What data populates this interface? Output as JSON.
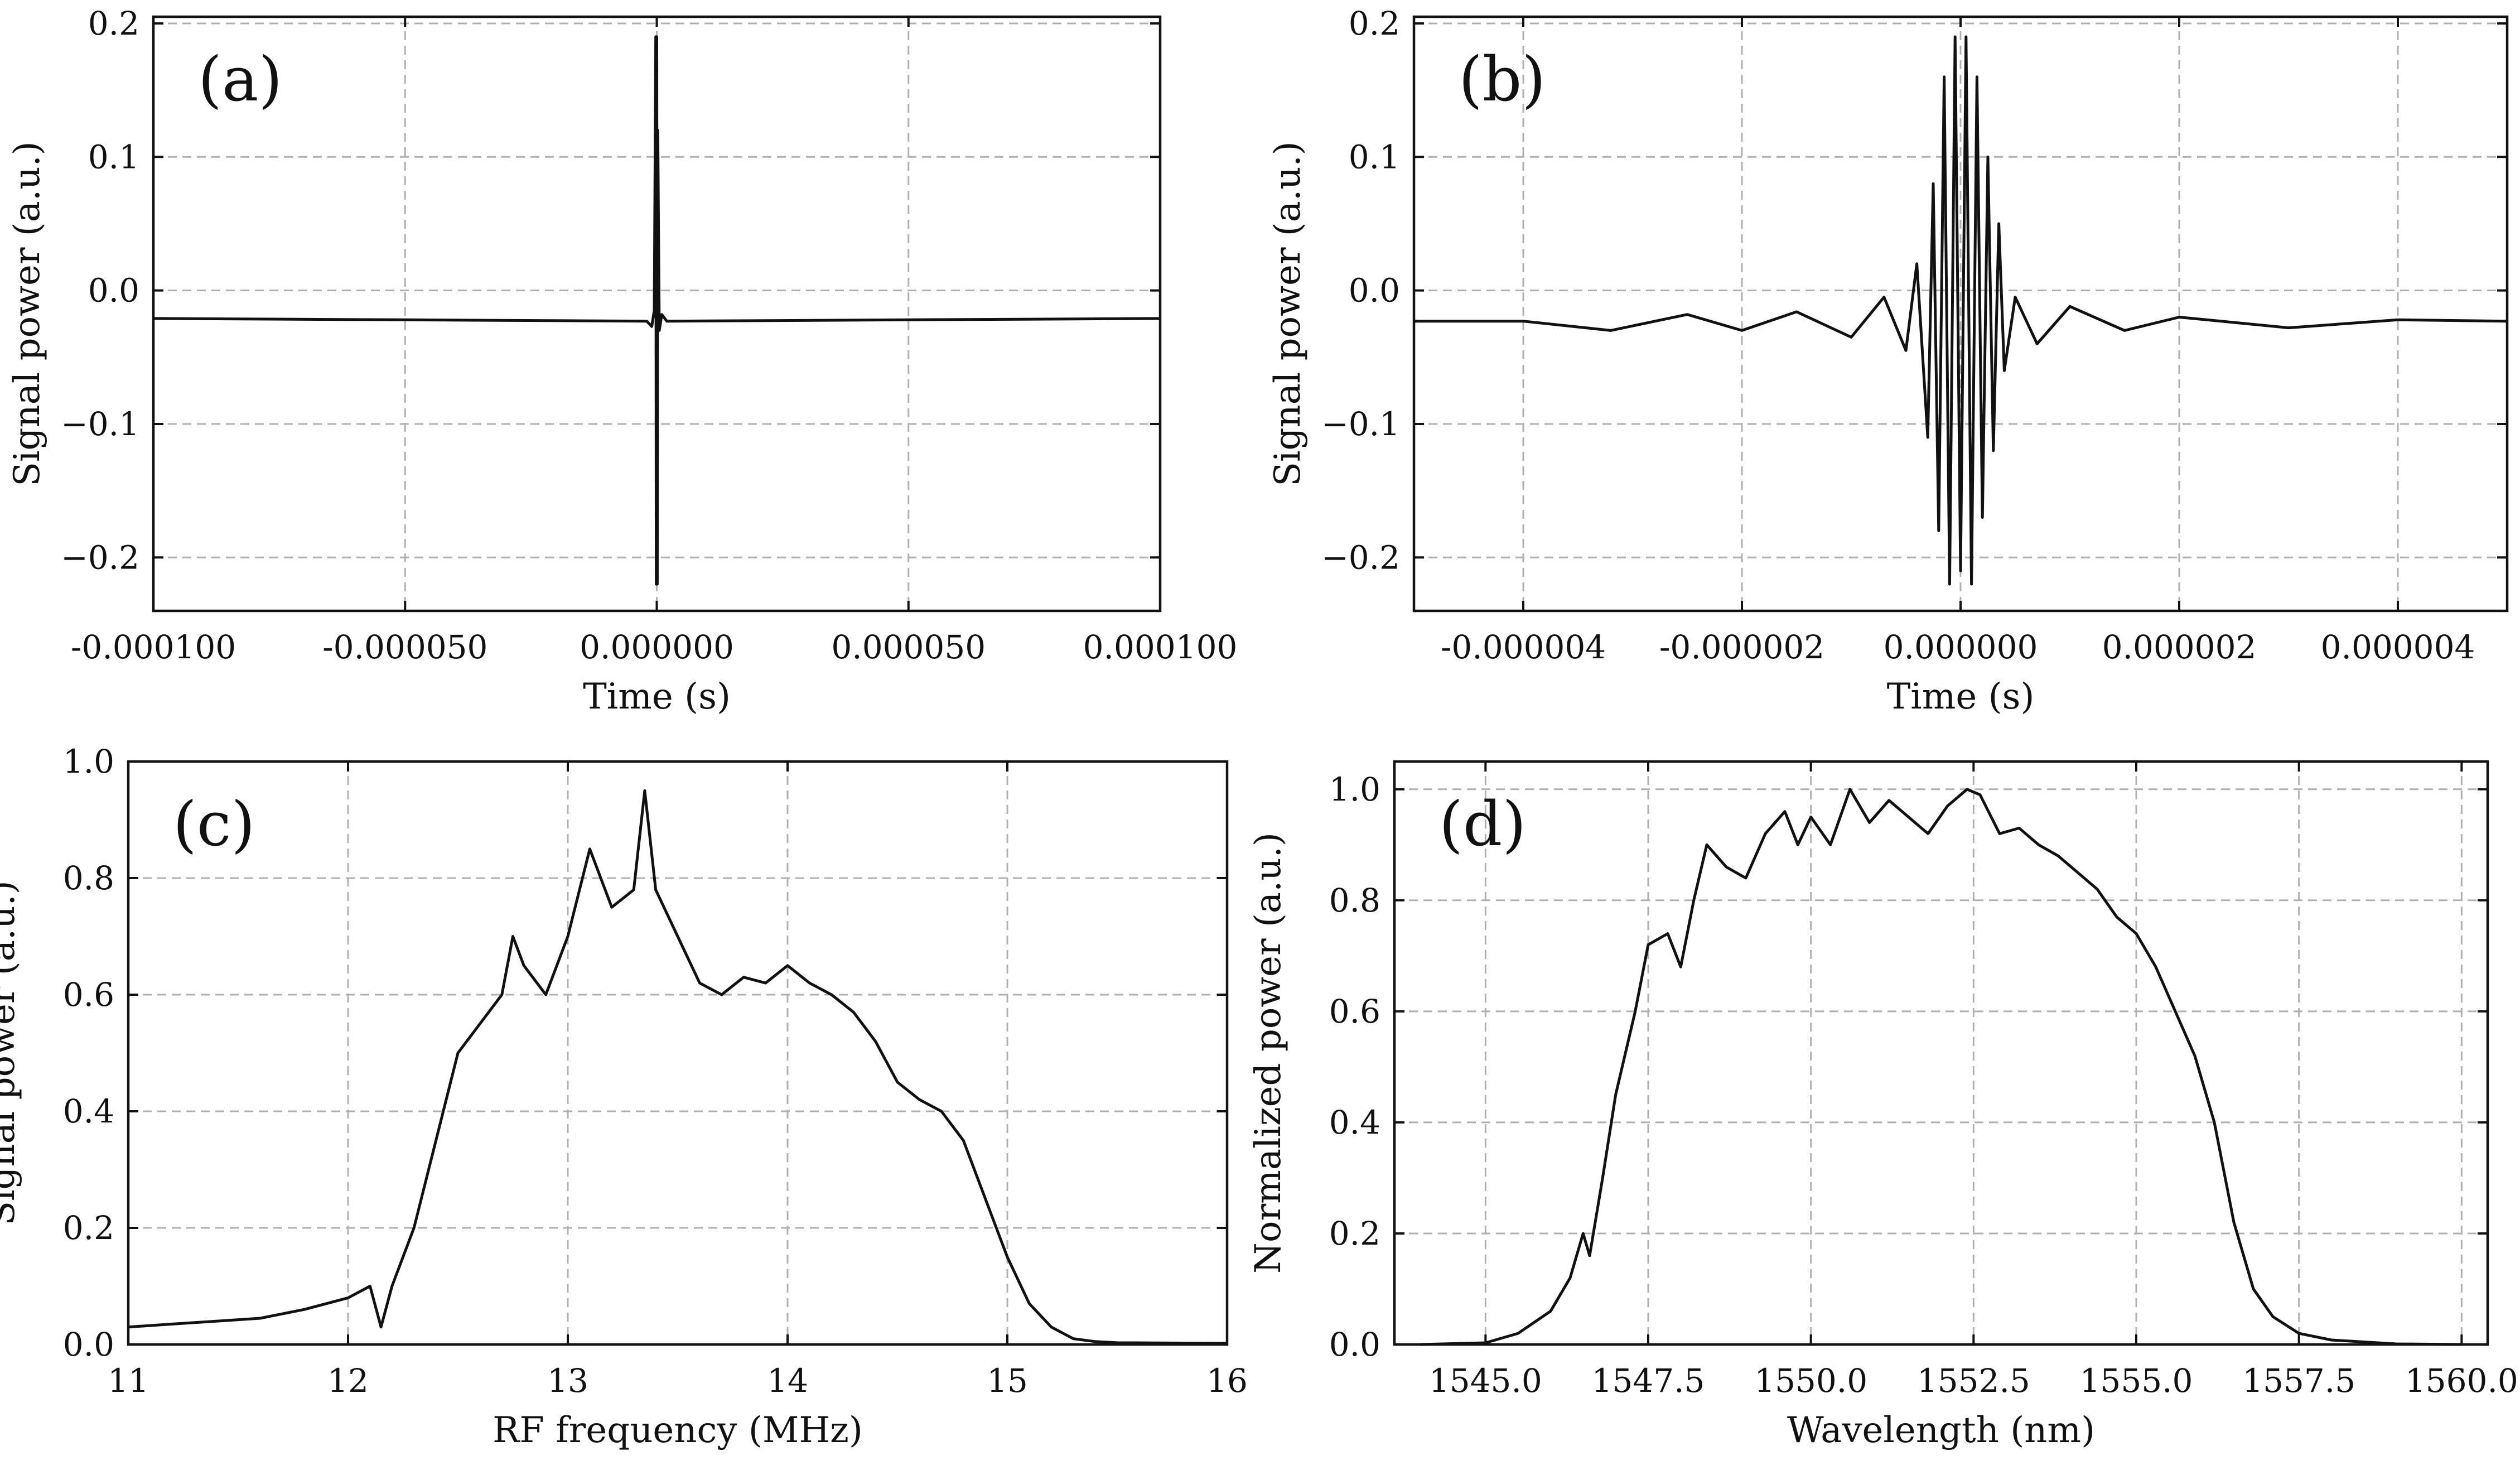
{
  "chart_data": [
    {
      "id": "a",
      "type": "line",
      "panel_label": "(a)",
      "xlabel": "Time (s)",
      "ylabel": "Signal power (a.u.)",
      "xlim": [
        -0.0001,
        0.0001
      ],
      "ylim": [
        -0.24,
        0.205
      ],
      "xticks": [
        -0.0001,
        -5e-05,
        0,
        5e-05,
        0.0001
      ],
      "xtick_labels": [
        "-0.000100",
        "-0.000050",
        "0.000000",
        "0.000050",
        "0.000100"
      ],
      "yticks": [
        -0.2,
        -0.1,
        0.0,
        0.1,
        0.2
      ],
      "ytick_labels": [
        "−0.2",
        "−0.1",
        "0.0",
        "0.1",
        "0.2"
      ],
      "grid": true,
      "series": [
        {
          "x": [
            -0.0001,
            -5e-05,
            -2e-06,
            -1e-06,
            -5e-07,
            -2e-07,
            -1e-07,
            0,
            1e-07,
            2e-07,
            5e-07,
            1e-06,
            2e-06,
            5e-05,
            0.0001
          ],
          "y": [
            -0.021,
            -0.022,
            -0.023,
            -0.027,
            -0.015,
            0.19,
            -0.22,
            0.19,
            -0.22,
            0.12,
            -0.03,
            -0.018,
            -0.023,
            -0.022,
            -0.021
          ]
        }
      ]
    },
    {
      "id": "b",
      "type": "line",
      "panel_label": "(b)",
      "xlabel": "Time (s)",
      "ylabel": "Signal power (a.u.)",
      "xlim": [
        -5e-06,
        5e-06
      ],
      "ylim": [
        -0.24,
        0.205
      ],
      "xticks": [
        -4e-06,
        -2e-06,
        0,
        2e-06,
        4e-06
      ],
      "xtick_labels": [
        "-0.000004",
        "-0.000002",
        "0.000000",
        "0.000002",
        "0.000004"
      ],
      "yticks": [
        -0.2,
        -0.1,
        0.0,
        0.1,
        0.2
      ],
      "ytick_labels": [
        "−0.2",
        "−0.1",
        "0.0",
        "0.1",
        "0.2"
      ],
      "grid": true,
      "series": [
        {
          "x": [
            -5e-06,
            -4e-06,
            -3.2e-06,
            -2.5e-06,
            -2e-06,
            -1.5e-06,
            -1e-06,
            -7e-07,
            -5e-07,
            -4e-07,
            -3e-07,
            -2.5e-07,
            -2e-07,
            -1.5e-07,
            -1e-07,
            -5e-08,
            0,
            5e-08,
            1e-07,
            1.5e-07,
            2e-07,
            2.5e-07,
            3e-07,
            3.5e-07,
            4e-07,
            5e-07,
            7e-07,
            1e-06,
            1.5e-06,
            2e-06,
            3e-06,
            4e-06,
            5e-06
          ],
          "y": [
            -0.023,
            -0.023,
            -0.03,
            -0.018,
            -0.03,
            -0.016,
            -0.035,
            -0.005,
            -0.045,
            0.02,
            -0.11,
            0.08,
            -0.18,
            0.16,
            -0.22,
            0.19,
            -0.21,
            0.19,
            -0.22,
            0.16,
            -0.17,
            0.1,
            -0.12,
            0.05,
            -0.06,
            -0.005,
            -0.04,
            -0.012,
            -0.03,
            -0.02,
            -0.028,
            -0.022,
            -0.023
          ]
        }
      ]
    },
    {
      "id": "c",
      "type": "line",
      "panel_label": "(c)",
      "xlabel": "RF frequency (MHz)",
      "ylabel": "Signal power (a.u.)",
      "xlim": [
        11,
        16
      ],
      "ylim": [
        0,
        1.0
      ],
      "xticks": [
        11,
        12,
        13,
        14,
        15,
        16
      ],
      "xtick_labels": [
        "11",
        "12",
        "13",
        "14",
        "15",
        "16"
      ],
      "yticks": [
        0.0,
        0.2,
        0.4,
        0.6,
        0.8,
        1.0
      ],
      "ytick_labels": [
        "0.0",
        "0.2",
        "0.4",
        "0.6",
        "0.8",
        "1.0"
      ],
      "grid": true,
      "series": [
        {
          "x": [
            11.0,
            11.2,
            11.4,
            11.6,
            11.8,
            12.0,
            12.1,
            12.15,
            12.2,
            12.3,
            12.4,
            12.5,
            12.6,
            12.7,
            12.75,
            12.8,
            12.9,
            13.0,
            13.1,
            13.2,
            13.3,
            13.35,
            13.4,
            13.5,
            13.6,
            13.7,
            13.8,
            13.9,
            14.0,
            14.1,
            14.2,
            14.3,
            14.4,
            14.5,
            14.6,
            14.7,
            14.8,
            14.9,
            15.0,
            15.1,
            15.2,
            15.3,
            15.4,
            15.5,
            16.0
          ],
          "y": [
            0.03,
            0.035,
            0.04,
            0.045,
            0.06,
            0.08,
            0.1,
            0.03,
            0.1,
            0.2,
            0.35,
            0.5,
            0.55,
            0.6,
            0.7,
            0.65,
            0.6,
            0.7,
            0.85,
            0.75,
            0.78,
            0.95,
            0.78,
            0.7,
            0.62,
            0.6,
            0.63,
            0.62,
            0.65,
            0.62,
            0.6,
            0.57,
            0.52,
            0.45,
            0.42,
            0.4,
            0.35,
            0.25,
            0.15,
            0.07,
            0.03,
            0.01,
            0.005,
            0.003,
            0.002
          ]
        }
      ]
    },
    {
      "id": "d",
      "type": "line",
      "panel_label": "(d)",
      "xlabel": "Wavelength (nm)",
      "ylabel": "Normalized power (a.u.)",
      "xlim": [
        1543.6,
        1560.4
      ],
      "ylim": [
        0,
        1.05
      ],
      "xticks": [
        1545.0,
        1547.5,
        1550.0,
        1552.5,
        1555.0,
        1557.5,
        1560.0
      ],
      "xtick_labels": [
        "1545.0",
        "1547.5",
        "1550.0",
        "1552.5",
        "1555.0",
        "1557.5",
        "1560.0"
      ],
      "yticks": [
        0.0,
        0.2,
        0.4,
        0.6,
        0.8,
        1.0
      ],
      "ytick_labels": [
        "0.0",
        "0.2",
        "0.4",
        "0.6",
        "0.8",
        "1.0"
      ],
      "grid": true,
      "series": [
        {
          "x": [
            1544.0,
            1545.0,
            1545.5,
            1546.0,
            1546.3,
            1546.5,
            1546.6,
            1546.8,
            1547.0,
            1547.3,
            1547.5,
            1547.8,
            1548.0,
            1548.2,
            1548.4,
            1548.7,
            1549.0,
            1549.3,
            1549.6,
            1549.8,
            1550.0,
            1550.3,
            1550.6,
            1550.9,
            1551.2,
            1551.5,
            1551.8,
            1552.1,
            1552.4,
            1552.6,
            1552.9,
            1553.2,
            1553.5,
            1553.8,
            1554.1,
            1554.4,
            1554.7,
            1555.0,
            1555.3,
            1555.6,
            1555.9,
            1556.2,
            1556.5,
            1556.8,
            1557.1,
            1557.5,
            1558.0,
            1559.0,
            1560.0
          ],
          "y": [
            0.0,
            0.003,
            0.02,
            0.06,
            0.12,
            0.2,
            0.16,
            0.3,
            0.45,
            0.6,
            0.72,
            0.74,
            0.68,
            0.8,
            0.9,
            0.86,
            0.84,
            0.92,
            0.96,
            0.9,
            0.95,
            0.9,
            1.0,
            0.94,
            0.98,
            0.95,
            0.92,
            0.97,
            1.0,
            0.99,
            0.92,
            0.93,
            0.9,
            0.88,
            0.85,
            0.82,
            0.77,
            0.74,
            0.68,
            0.6,
            0.52,
            0.4,
            0.22,
            0.1,
            0.05,
            0.02,
            0.008,
            0.001,
            0.0
          ]
        }
      ]
    }
  ]
}
